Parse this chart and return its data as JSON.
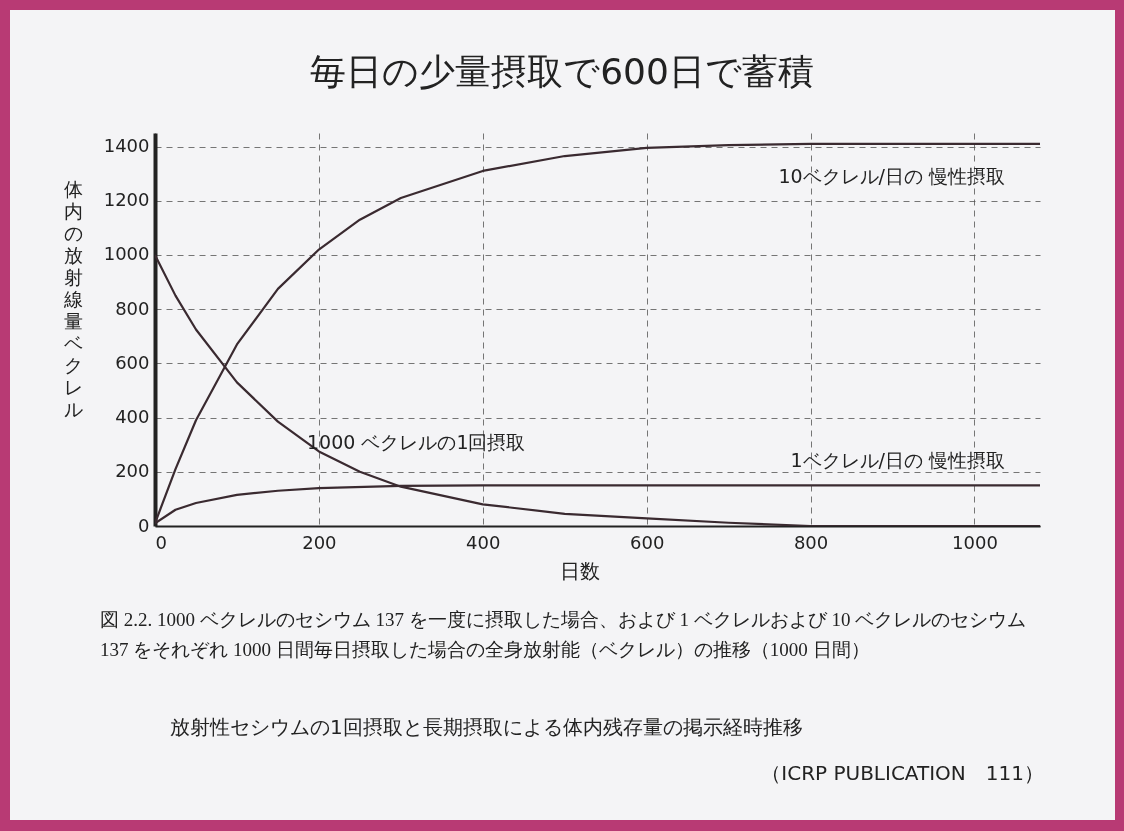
{
  "chart_data": {
    "type": "line",
    "title": "毎日の少量摂取で600日で蓄積",
    "xlabel": "日数",
    "ylabel": "体内の放射線量ベクレル",
    "xlim": [
      0,
      1080
    ],
    "ylim": [
      0,
      1450
    ],
    "xticks": [
      0,
      200,
      400,
      600,
      800,
      1000
    ],
    "yticks": [
      0,
      200,
      400,
      600,
      800,
      1000,
      1200,
      1400
    ],
    "grid": true,
    "line_style": "solid",
    "marker": "none",
    "series": [
      {
        "name": "10ベクレル/日の 慢性摂取",
        "color": "#3a2a30",
        "x": [
          0,
          25,
          50,
          100,
          150,
          200,
          250,
          300,
          400,
          500,
          600,
          700,
          800,
          1080
        ],
        "values": [
          10,
          210,
          390,
          670,
          875,
          1020,
          1130,
          1210,
          1310,
          1365,
          1395,
          1405,
          1410,
          1410
        ]
      },
      {
        "name": "1000 ベクレルの1回摂取",
        "color": "#3a2a30",
        "x": [
          0,
          25,
          50,
          100,
          150,
          200,
          250,
          300,
          400,
          500,
          600,
          700,
          800,
          1080
        ],
        "values": [
          1000,
          850,
          725,
          530,
          385,
          275,
          200,
          145,
          80,
          45,
          28,
          12,
          0,
          0
        ]
      },
      {
        "name": "1ベクレル/日の 慢性摂取",
        "color": "#3a2a30",
        "x": [
          0,
          25,
          50,
          100,
          150,
          200,
          300,
          400,
          600,
          800,
          1080
        ],
        "values": [
          10,
          60,
          85,
          115,
          130,
          140,
          148,
          150,
          150,
          150,
          150
        ]
      }
    ],
    "annotations": [
      "図 2.2. 1000 ベクレルのセシウム 137 を一度に摂取した場合、および 1 ベクレルおよび 10 ベクレルのセシウム 137 をそれぞれ 1000 日間毎日摂取した場合の全身放射能（ベクレル）の推移（1000 日間）",
      "放射性セシウムの1回摂取と長期摂取による体内残存量の掲示経時推移",
      "（ICRP PUBLICATION　111）"
    ]
  }
}
